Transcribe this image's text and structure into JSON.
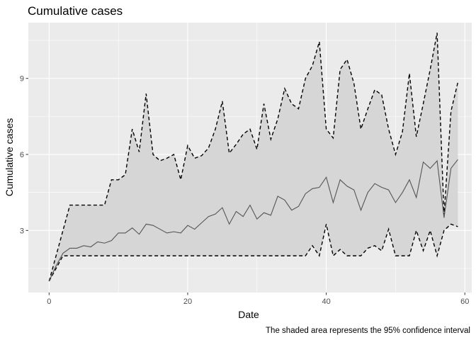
{
  "chart_data": {
    "type": "line",
    "title": "Cumulative cases",
    "xlabel": "Date",
    "ylabel": "Cumulative cases",
    "caption": "The shaded area represents the 95% confidence interval",
    "xlim": [
      -3,
      61
    ],
    "ylim": [
      0.55,
      11.2
    ],
    "x_ticks": [
      0,
      20,
      40,
      60
    ],
    "y_ticks": [
      3,
      6,
      9
    ],
    "grid": true,
    "legend": "none",
    "colors": {
      "panel": "#ebebeb",
      "grid": "#ffffff",
      "band": "#d6d6d6",
      "mean_line": "#555555",
      "bound_line": "#000000"
    },
    "x": [
      0,
      1,
      2,
      3,
      4,
      5,
      6,
      7,
      8,
      9,
      10,
      11,
      12,
      13,
      14,
      15,
      16,
      17,
      18,
      19,
      20,
      21,
      22,
      23,
      24,
      25,
      26,
      27,
      28,
      29,
      30,
      31,
      32,
      33,
      34,
      35,
      36,
      37,
      38,
      39,
      40,
      41,
      42,
      43,
      44,
      45,
      46,
      47,
      48,
      49,
      50,
      51,
      52,
      53,
      54,
      55,
      56,
      57,
      58,
      59
    ],
    "series": [
      {
        "role": "mean",
        "values": [
          1.0,
          1.6,
          2.1,
          2.3,
          2.3,
          2.4,
          2.35,
          2.55,
          2.5,
          2.6,
          2.9,
          2.9,
          3.1,
          2.85,
          3.25,
          3.2,
          3.05,
          2.9,
          2.95,
          2.9,
          3.2,
          3.05,
          3.3,
          3.55,
          3.65,
          3.9,
          3.25,
          3.75,
          3.55,
          4.0,
          3.45,
          3.7,
          3.6,
          4.35,
          4.2,
          3.8,
          3.95,
          4.45,
          4.65,
          4.7,
          5.1,
          4.1,
          5.0,
          4.75,
          4.6,
          3.8,
          4.5,
          4.85,
          4.7,
          4.6,
          4.1,
          4.5,
          5.0,
          4.3,
          5.7,
          5.45,
          5.75,
          3.5,
          5.45,
          5.8
        ]
      },
      {
        "role": "upper",
        "values": [
          1.0,
          2.0,
          3.0,
          4.0,
          4.0,
          4.0,
          4.0,
          4.0,
          4.0,
          5.0,
          5.0,
          5.2,
          7.0,
          6.1,
          8.4,
          6.0,
          5.75,
          5.85,
          6.0,
          5.0,
          6.35,
          5.85,
          5.95,
          6.25,
          7.0,
          8.1,
          6.05,
          6.4,
          6.8,
          7.0,
          6.2,
          8.0,
          6.6,
          7.4,
          8.6,
          8.0,
          7.8,
          9.0,
          9.5,
          10.45,
          7.0,
          6.65,
          9.35,
          9.75,
          8.8,
          7.0,
          7.8,
          8.55,
          8.35,
          7.0,
          6.0,
          6.9,
          9.2,
          6.7,
          8.0,
          9.35,
          10.8,
          3.6,
          7.7,
          8.85
        ]
      },
      {
        "role": "lower",
        "values": [
          1.0,
          1.5,
          2.0,
          2.0,
          2.0,
          2.0,
          2.0,
          2.0,
          2.0,
          2.0,
          2.0,
          2.0,
          2.0,
          2.0,
          2.0,
          2.0,
          2.0,
          2.0,
          2.0,
          2.0,
          2.0,
          2.0,
          2.0,
          2.0,
          2.0,
          2.0,
          2.0,
          2.0,
          2.0,
          2.0,
          2.0,
          2.0,
          2.0,
          2.0,
          2.0,
          2.0,
          2.0,
          2.0,
          2.4,
          2.0,
          3.25,
          2.0,
          2.25,
          2.0,
          2.0,
          2.0,
          2.3,
          2.4,
          2.2,
          3.05,
          2.0,
          2.0,
          2.0,
          3.0,
          2.2,
          3.0,
          2.0,
          3.0,
          3.25,
          3.15
        ]
      }
    ]
  }
}
